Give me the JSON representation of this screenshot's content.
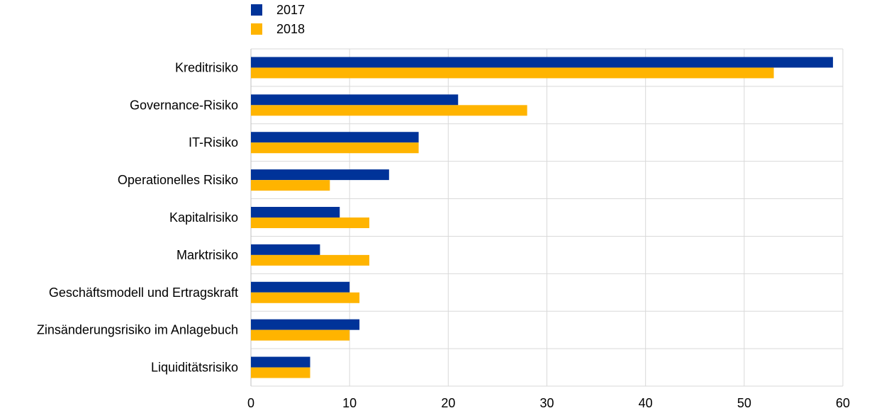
{
  "chart_data": {
    "type": "bar",
    "orientation": "horizontal",
    "categories": [
      "Kreditrisiko",
      "Governance-Risiko",
      "IT-Risiko",
      "Operationelles Risiko",
      "Kapitalrisiko",
      "Marktrisiko",
      "Geschäftsmodell und Ertragskraft",
      "Zinsänderungsrisiko im Anlagebuch",
      "Liquiditätsrisiko"
    ],
    "series": [
      {
        "name": "2017",
        "color": "#003399",
        "values": [
          59,
          21,
          17,
          14,
          9,
          7,
          10,
          11,
          6
        ]
      },
      {
        "name": "2018",
        "color": "#ffb400",
        "values": [
          53,
          28,
          17,
          8,
          12,
          12,
          11,
          10,
          6
        ]
      }
    ],
    "xlim": [
      0,
      60
    ],
    "xticks": [
      "0",
      "10",
      "20",
      "30",
      "40",
      "50",
      "60"
    ],
    "grid": true,
    "legend": "top-left",
    "title": "",
    "xlabel": "",
    "ylabel": ""
  }
}
